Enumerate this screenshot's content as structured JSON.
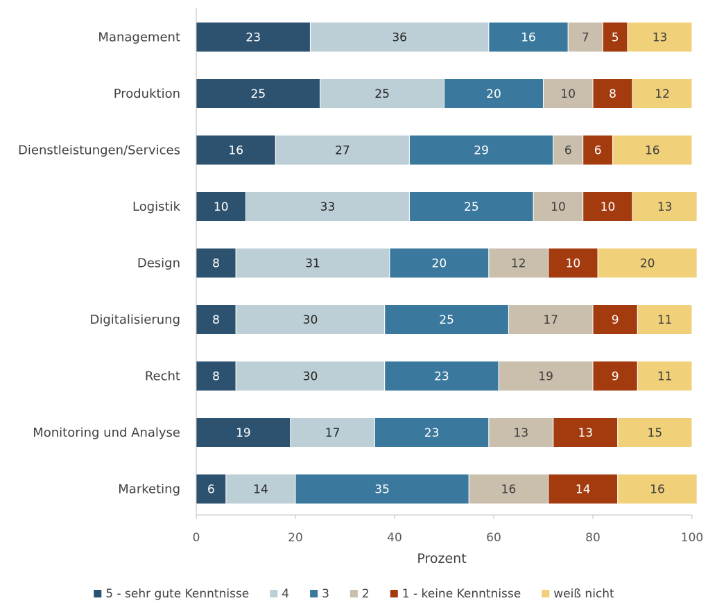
{
  "chart_data": {
    "type": "bar",
    "orientation": "horizontal",
    "stacked": true,
    "xlabel": "Prozent",
    "ylabel": "",
    "xlim": [
      0,
      100
    ],
    "x_ticks": [
      0,
      20,
      40,
      60,
      80,
      100
    ],
    "grid": false,
    "legend_position": "bottom",
    "categories": [
      "Management",
      "Produktion",
      "Dienstleistungen/Services",
      "Logistik",
      "Design",
      "Digitalisierung",
      "Recht",
      "Monitoring und Analyse",
      "Marketing"
    ],
    "series": [
      {
        "name": "5 - sehr gute Kenntnisse",
        "color": "#2c5270",
        "label_color": "#ffffff",
        "values": [
          23,
          25,
          16,
          10,
          8,
          8,
          8,
          19,
          6
        ]
      },
      {
        "name": "4",
        "color": "#bccfd6",
        "label_color": "#262626",
        "values": [
          36,
          25,
          27,
          33,
          31,
          30,
          30,
          17,
          14
        ]
      },
      {
        "name": "3",
        "color": "#3a789d",
        "label_color": "#ffffff",
        "values": [
          16,
          20,
          29,
          25,
          20,
          25,
          23,
          23,
          35
        ]
      },
      {
        "name": "2",
        "color": "#cabfac",
        "label_color": "#404040",
        "values": [
          7,
          10,
          6,
          10,
          12,
          17,
          19,
          13,
          16
        ]
      },
      {
        "name": "1 - keine Kenntnisse",
        "color": "#a33b0e",
        "label_color": "#ffffff",
        "values": [
          5,
          8,
          6,
          10,
          10,
          9,
          9,
          13,
          14
        ]
      },
      {
        "name": "weiß nicht",
        "color": "#f0d078",
        "label_color": "#404040",
        "values": [
          13,
          12,
          16,
          13,
          20,
          11,
          11,
          15,
          16
        ]
      }
    ]
  }
}
